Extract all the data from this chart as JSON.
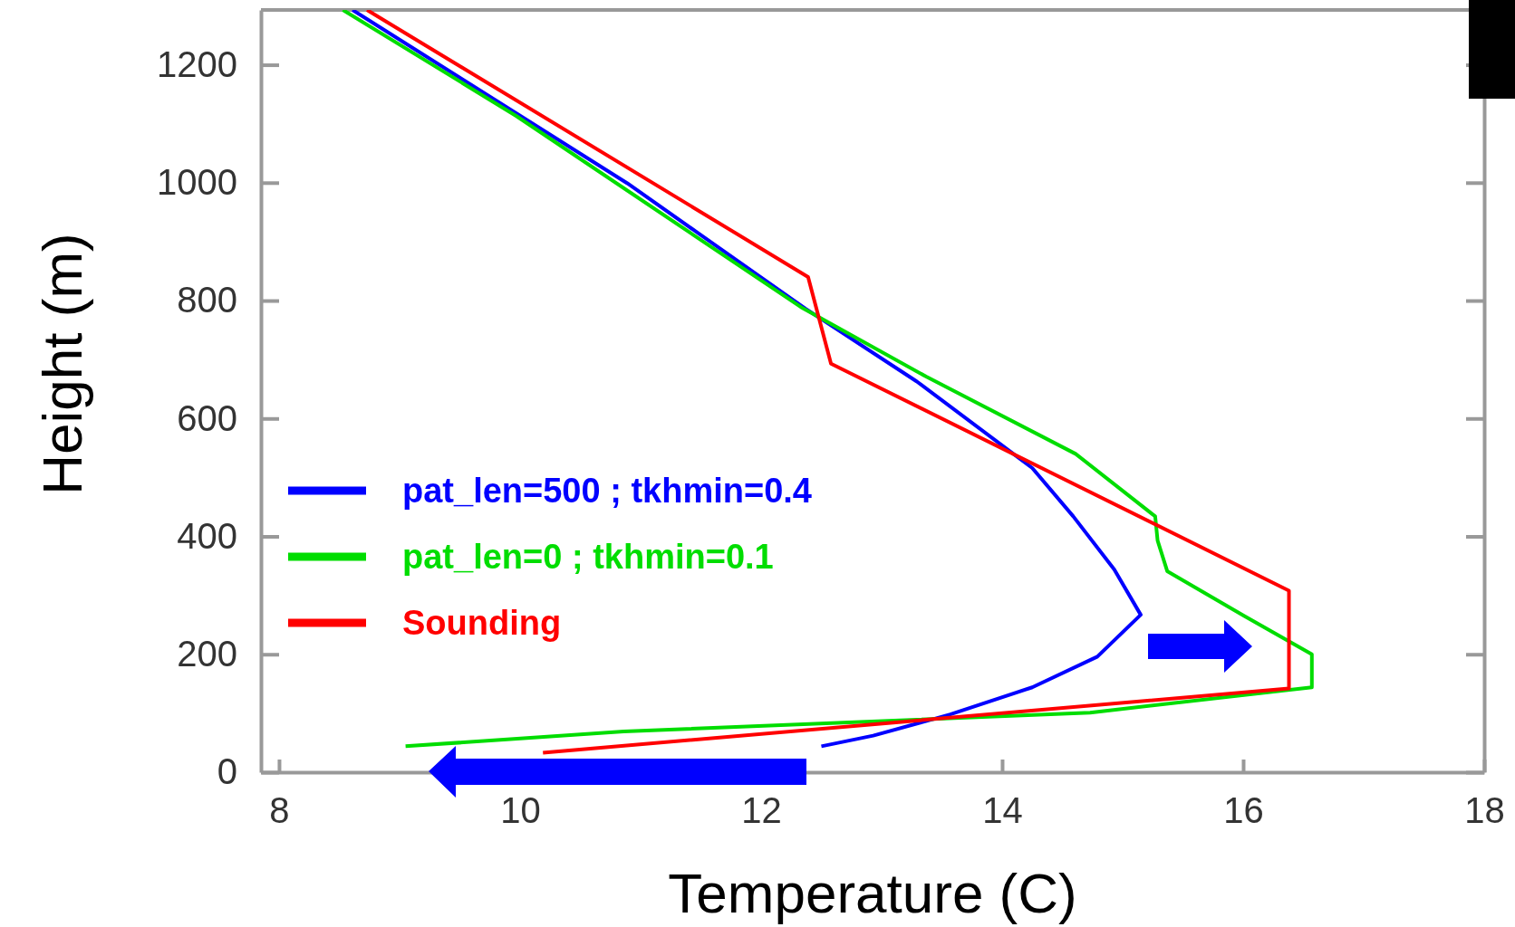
{
  "chart_data": {
    "type": "line",
    "xlabel": "Temperature (C)",
    "ylabel": "Height (m)",
    "xlim": [
      7.85,
      18
    ],
    "ylim": [
      0,
      1293
    ],
    "xticks": [
      8,
      10,
      12,
      14,
      16,
      18
    ],
    "yticks": [
      0,
      200,
      400,
      600,
      800,
      1000,
      1200
    ],
    "grid": false,
    "legend": "left",
    "marker": "none",
    "line_style": "solid",
    "series": [
      {
        "name": "pat_len=500 ; tkhmin=0.4",
        "color": "#0000ff",
        "x": [
          12.5,
          12.93,
          13.57,
          14.25,
          14.79,
          15.15,
          14.93,
          14.59,
          14.25,
          13.29,
          12.37,
          10.89,
          8.61
        ],
        "values": [
          44,
          62,
          98,
          144,
          196,
          267,
          344,
          434,
          516,
          663,
          786,
          999,
          1293
        ]
      },
      {
        "name": "pat_len=0 ; tkhmin=0.1",
        "color": "#00dd00",
        "x": [
          9.05,
          10.86,
          14.73,
          16.57,
          16.57,
          16.01,
          15.37,
          15.29,
          15.27,
          14.61,
          13.37,
          12.33,
          9.97,
          8.53
        ],
        "values": [
          44,
          69,
          101,
          144,
          200,
          265,
          341,
          393,
          434,
          540,
          671,
          789,
          1113,
          1293
        ]
      },
      {
        "name": "Sounding",
        "color": "#ff0000",
        "x": [
          10.19,
          16.38,
          16.38,
          12.58,
          12.39,
          8.73
        ],
        "values": [
          33,
          142,
          308,
          693,
          840,
          1293
        ]
      }
    ]
  }
}
